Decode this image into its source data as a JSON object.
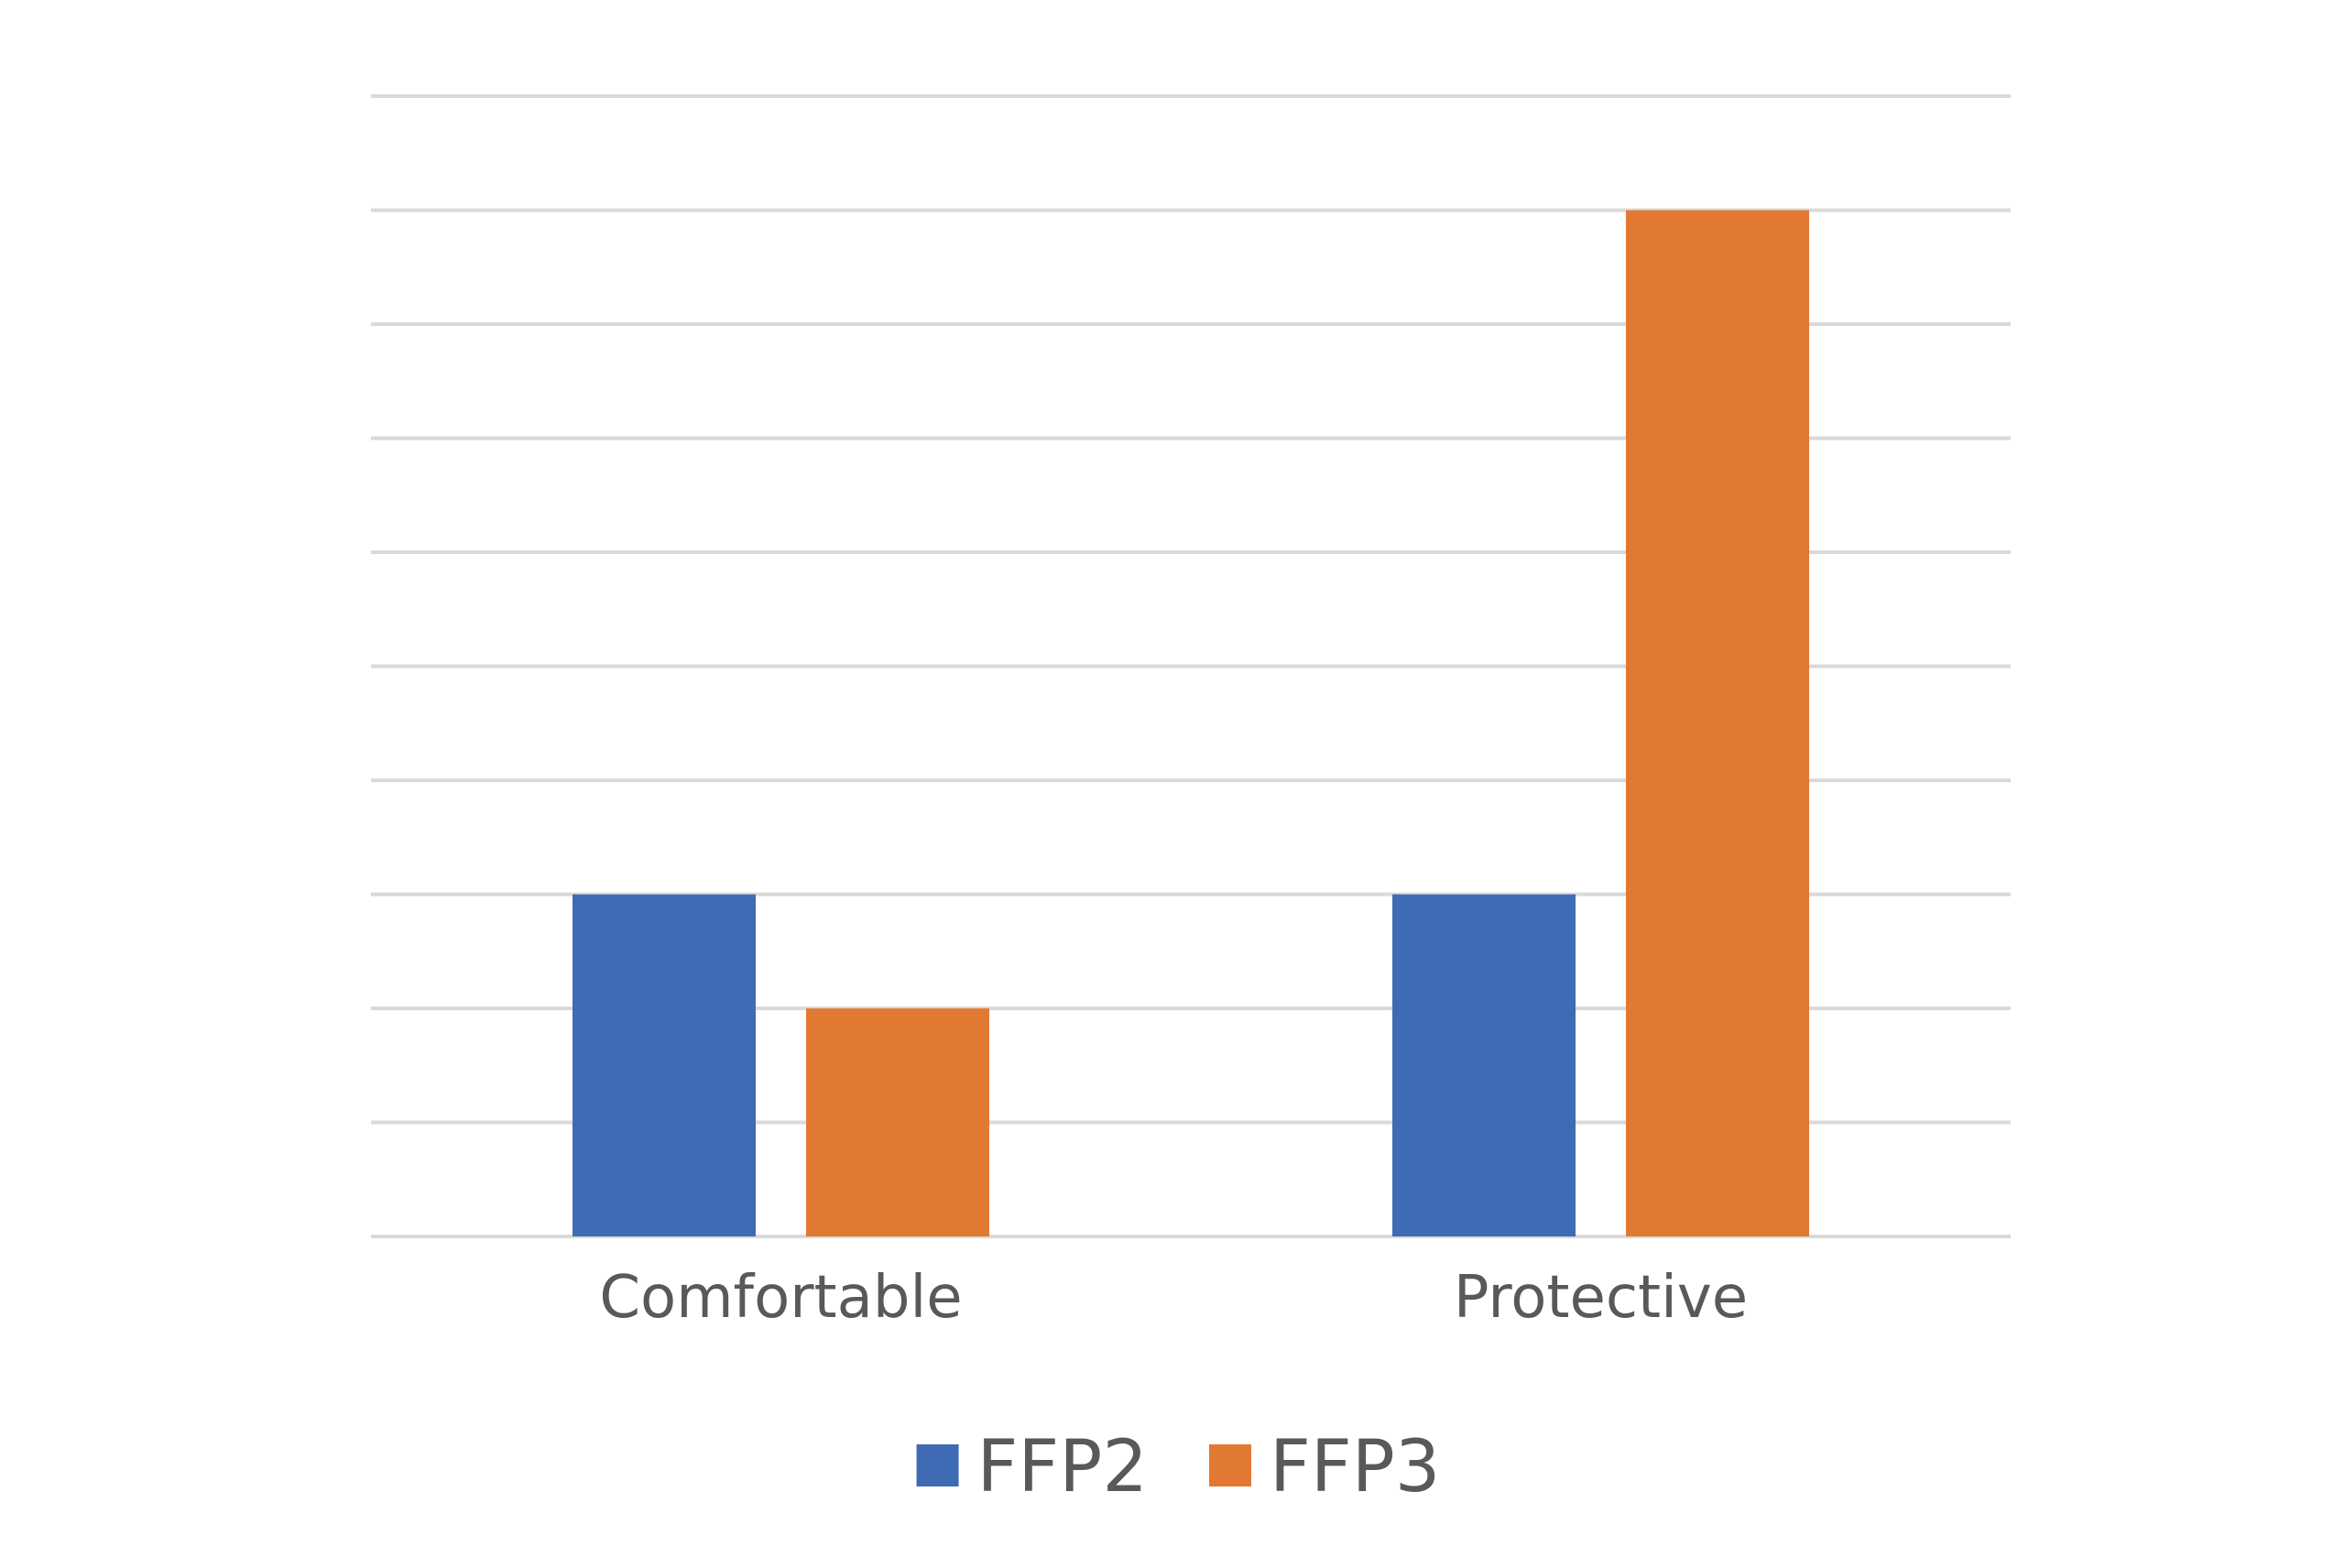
{
  "chart_data": {
    "type": "bar",
    "categories": [
      "Comfortable",
      "Protective"
    ],
    "series": [
      {
        "name": "FFP2",
        "values": [
          3,
          3
        ],
        "color": "#3E6BB4"
      },
      {
        "name": "FFP3",
        "values": [
          2,
          9
        ],
        "color": "#E27933"
      }
    ],
    "title": "",
    "xlabel": "",
    "ylabel": "",
    "ylim": [
      0,
      10
    ],
    "y_tick_step": 1,
    "y_tick_labels_visible": false,
    "grid": true,
    "legend": "bottom-center",
    "colors": {
      "gridline": "#D9D9D9",
      "text": "#595959",
      "background": "#FFFFFF"
    }
  }
}
